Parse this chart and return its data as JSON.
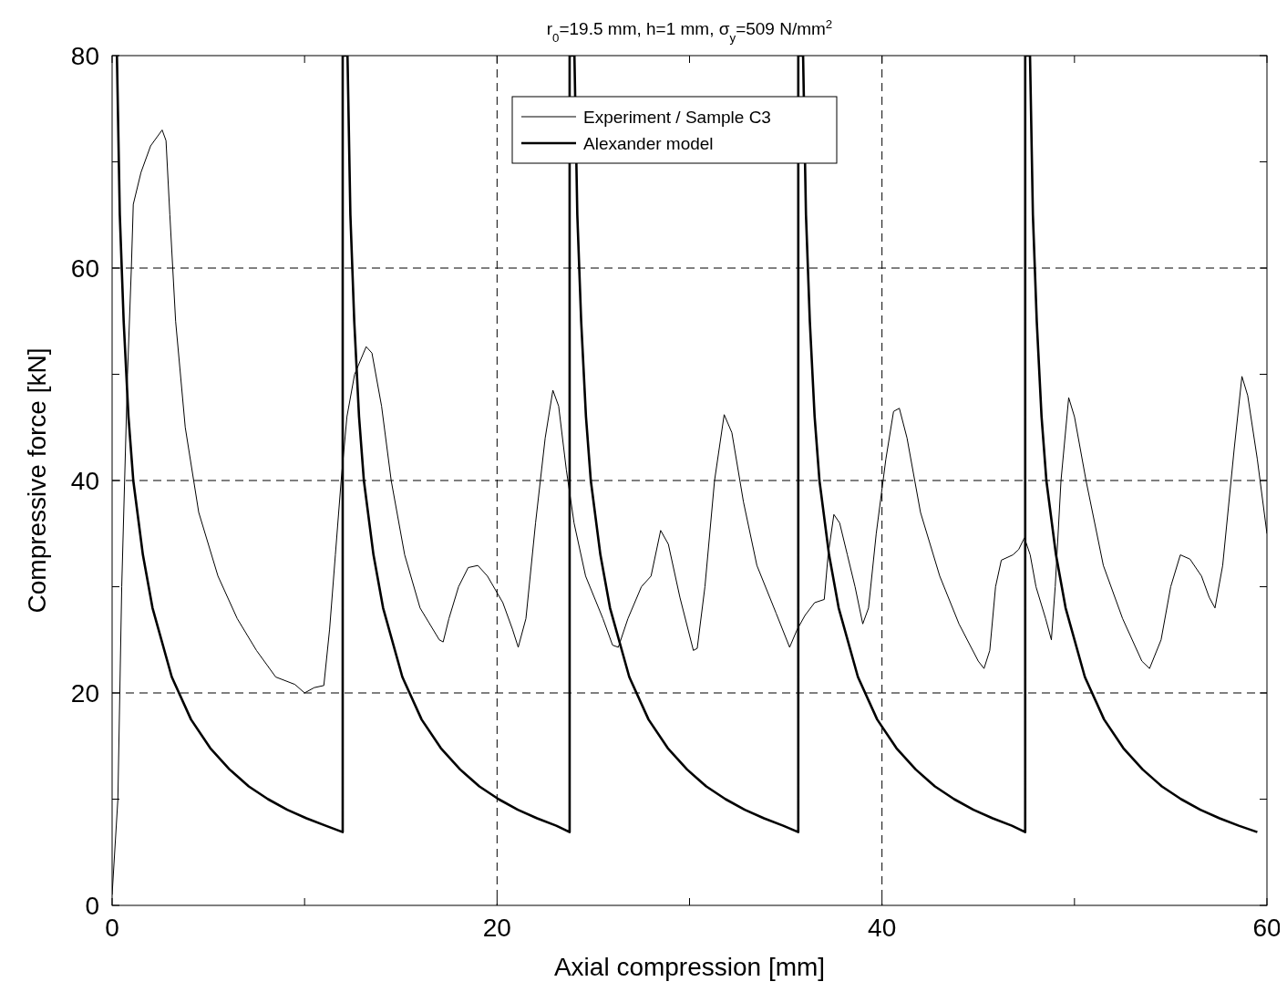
{
  "chart_data": {
    "type": "line",
    "title": "r$_{0}$=19.5 mm, h=1 mm, σ$_{y}$=509 N/mm$^{2}$",
    "xlabel": "Axial compression [mm]",
    "ylabel": "Compressive force [kN]",
    "xlim": [
      0,
      60
    ],
    "ylim": [
      0,
      80
    ],
    "xticks": [
      0,
      {
        "value": 10,
        "label": null
      },
      20,
      {
        "value": 30,
        "label": null
      },
      40,
      {
        "value": 50,
        "label": null
      },
      60
    ],
    "yticks": [
      0,
      {
        "value": 10,
        "label": null
      },
      20,
      {
        "value": 30,
        "label": null
      },
      40,
      {
        "value": 50,
        "label": null
      },
      60,
      {
        "value": 70,
        "label": null
      },
      80
    ],
    "grid": true,
    "legend": "top",
    "line_style": "solid",
    "marker": "none",
    "series": [
      {
        "name": "Experiment / Sample C3",
        "color": "#000000",
        "x": [
          0,
          0.3,
          0.5,
          0.8,
          1.0,
          1.1,
          1.5,
          2.0,
          2.6,
          2.8,
          3.0,
          3.3,
          3.8,
          4.5,
          5.5,
          6.5,
          7.5,
          8.5,
          9.5,
          10.0,
          10.5,
          11.0,
          11.3,
          11.6,
          11.9,
          12.2,
          12.6,
          13.2,
          13.5,
          14.0,
          14.5,
          15.2,
          16.0,
          17.0,
          17.2,
          17.5,
          18.0,
          18.5,
          19.0,
          19.5,
          20.3,
          20.8,
          21.1,
          21.5,
          22.0,
          22.5,
          22.9,
          23.2,
          23.6,
          24.0,
          24.6,
          25.5,
          26.0,
          26.3,
          26.8,
          27.5,
          28.0,
          28.5,
          28.9,
          29.5,
          30.2,
          30.4,
          30.8,
          31.3,
          31.8,
          32.2,
          32.8,
          33.5,
          34.5,
          35.2,
          35.6,
          36.0,
          36.5,
          37.0,
          37.2,
          37.5,
          37.8,
          38.2,
          38.6,
          39.0,
          39.3,
          39.7,
          40.2,
          40.6,
          40.9,
          41.3,
          42.0,
          43.0,
          44.0,
          45.0,
          45.3,
          45.6,
          45.9,
          46.2,
          46.8,
          47.1,
          47.4,
          47.7,
          48.0,
          48.5,
          48.8,
          49.0,
          49.3,
          49.7,
          50.0,
          50.6,
          51.5,
          52.5,
          53.5,
          53.9,
          54.5,
          55.0,
          55.5,
          56.0,
          56.6,
          57.0,
          57.3,
          57.7,
          58.3,
          58.7,
          59.0,
          59.5,
          60
        ],
        "values": [
          1,
          10,
          30,
          50,
          60,
          66,
          69,
          71.5,
          73,
          72,
          65,
          55,
          45,
          37,
          31,
          27,
          24,
          21.5,
          20.8,
          20,
          20.5,
          20.7,
          26,
          33,
          40,
          46,
          50,
          52.6,
          52,
          47,
          40,
          33,
          28,
          25,
          24.8,
          27,
          30,
          31.8,
          32,
          31,
          28.5,
          26,
          24.3,
          27,
          36,
          44,
          48.5,
          47,
          41,
          36,
          31,
          27,
          24.5,
          24.3,
          27,
          30,
          31,
          35.3,
          34,
          29,
          24,
          24.2,
          30,
          40,
          46.2,
          44.5,
          38,
          32,
          27.5,
          24.3,
          26,
          27.3,
          28.5,
          28.8,
          33,
          36.8,
          36,
          33,
          30,
          26.5,
          28,
          35,
          42,
          46.5,
          46.8,
          44,
          37,
          31,
          26.5,
          23,
          22.3,
          24,
          30,
          32.5,
          33,
          33.5,
          34.6,
          33,
          30,
          27,
          25,
          30,
          40,
          47.8,
          46,
          40,
          32,
          27,
          23,
          22.3,
          25,
          30,
          33,
          32.6,
          31,
          29,
          28,
          32,
          43,
          49.8,
          48,
          42,
          35
        ]
      },
      {
        "name": "Alexander model",
        "color": "#000000",
        "x": [
          0.25,
          0.4,
          0.6,
          0.85,
          1.1,
          1.6,
          2.1,
          3.1,
          4.1,
          5.1,
          6.1,
          7.1,
          8.1,
          9.1,
          10.1,
          11.1,
          11.98,
          11.98,
          12.23,
          12.38,
          12.58,
          12.83,
          13.08,
          13.58,
          14.08,
          15.08,
          16.08,
          17.08,
          18.08,
          19.08,
          20.08,
          21.08,
          22.08,
          23.08,
          23.77,
          23.77,
          24.02,
          24.17,
          24.37,
          24.62,
          24.87,
          25.37,
          25.87,
          26.87,
          27.87,
          28.87,
          29.87,
          30.87,
          31.87,
          32.87,
          33.87,
          34.87,
          35.65,
          35.65,
          35.9,
          36.05,
          36.25,
          36.5,
          36.75,
          37.25,
          37.75,
          38.75,
          39.75,
          40.75,
          41.75,
          42.75,
          43.75,
          44.75,
          45.75,
          46.75,
          47.44,
          47.44,
          47.69,
          47.84,
          48.04,
          48.29,
          48.54,
          49.04,
          49.54,
          50.54,
          51.54,
          52.54,
          53.54,
          54.54,
          55.54,
          56.54,
          57.54,
          58.54,
          59.5
        ],
        "values": [
          80,
          65,
          55,
          46,
          40,
          33,
          28,
          21.5,
          17.5,
          14.8,
          12.8,
          11.2,
          10,
          9,
          8.2,
          7.5,
          6.9,
          80,
          80,
          65,
          55,
          46,
          40,
          33,
          28,
          21.5,
          17.5,
          14.8,
          12.8,
          11.2,
          10,
          9,
          8.2,
          7.5,
          6.9,
          80,
          80,
          65,
          55,
          46,
          40,
          33,
          28,
          21.5,
          17.5,
          14.8,
          12.8,
          11.2,
          10,
          9,
          8.2,
          7.5,
          6.9,
          80,
          80,
          65,
          55,
          46,
          40,
          33,
          28,
          21.5,
          17.5,
          14.8,
          12.8,
          11.2,
          10,
          9,
          8.2,
          7.5,
          6.9,
          80,
          80,
          65,
          55,
          46,
          40,
          33,
          28,
          21.5,
          17.5,
          14.8,
          12.8,
          11.2,
          10,
          9,
          8.2,
          7.5,
          6.9
        ]
      }
    ]
  }
}
